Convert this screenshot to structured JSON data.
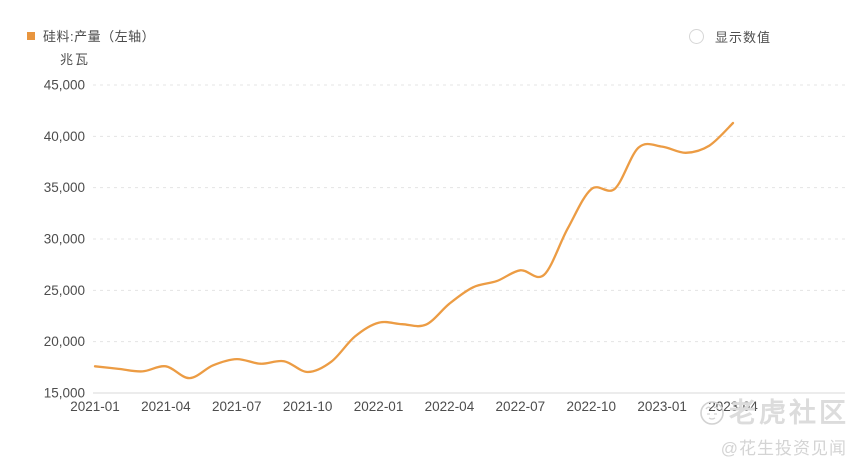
{
  "legend": {
    "label": "硅料:产量（左轴）",
    "marker_color": "#E8953E"
  },
  "controls": {
    "show_values_label": "显示数值"
  },
  "watermark": {
    "brand": "老虎社区",
    "handle": "@花生投资见闻"
  },
  "colors": {
    "line": "#EC9C44",
    "axis_text": "#4d4d4d",
    "gridline": "#e4e4e4",
    "axis_line": "#d8d8d8"
  },
  "chart_data": {
    "type": "line",
    "title": "硅料:产量（左轴）",
    "ylabel": "兆瓦",
    "xlabel": "",
    "grid": "horizontal dashed",
    "legend_position": "top-left",
    "ylim": [
      15000,
      45000
    ],
    "ytick_step": 5000,
    "ytick_labels": [
      "15,000",
      "20,000",
      "25,000",
      "30,000",
      "35,000",
      "40,000",
      "45,000"
    ],
    "x_label_every": 3,
    "x": [
      "2021-01",
      "2021-02",
      "2021-03",
      "2021-04",
      "2021-05",
      "2021-06",
      "2021-07",
      "2021-08",
      "2021-09",
      "2021-10",
      "2021-11",
      "2021-12",
      "2022-01",
      "2022-02",
      "2022-03",
      "2022-04",
      "2022-05",
      "2022-06",
      "2022-07",
      "2022-08",
      "2022-09",
      "2022-10",
      "2022-11",
      "2022-12",
      "2023-01",
      "2023-02",
      "2023-03",
      "2023-04"
    ],
    "series": [
      {
        "name": "硅料:产量（左轴）",
        "color": "#EC9C44",
        "values": [
          17600,
          17350,
          17100,
          17600,
          16450,
          17700,
          18300,
          17850,
          18100,
          17050,
          18050,
          20500,
          21850,
          21700,
          21650,
          23700,
          25300,
          25900,
          26950,
          26500,
          31000,
          34850,
          34900,
          38900,
          39000,
          38400,
          39100,
          41300
        ]
      }
    ]
  }
}
